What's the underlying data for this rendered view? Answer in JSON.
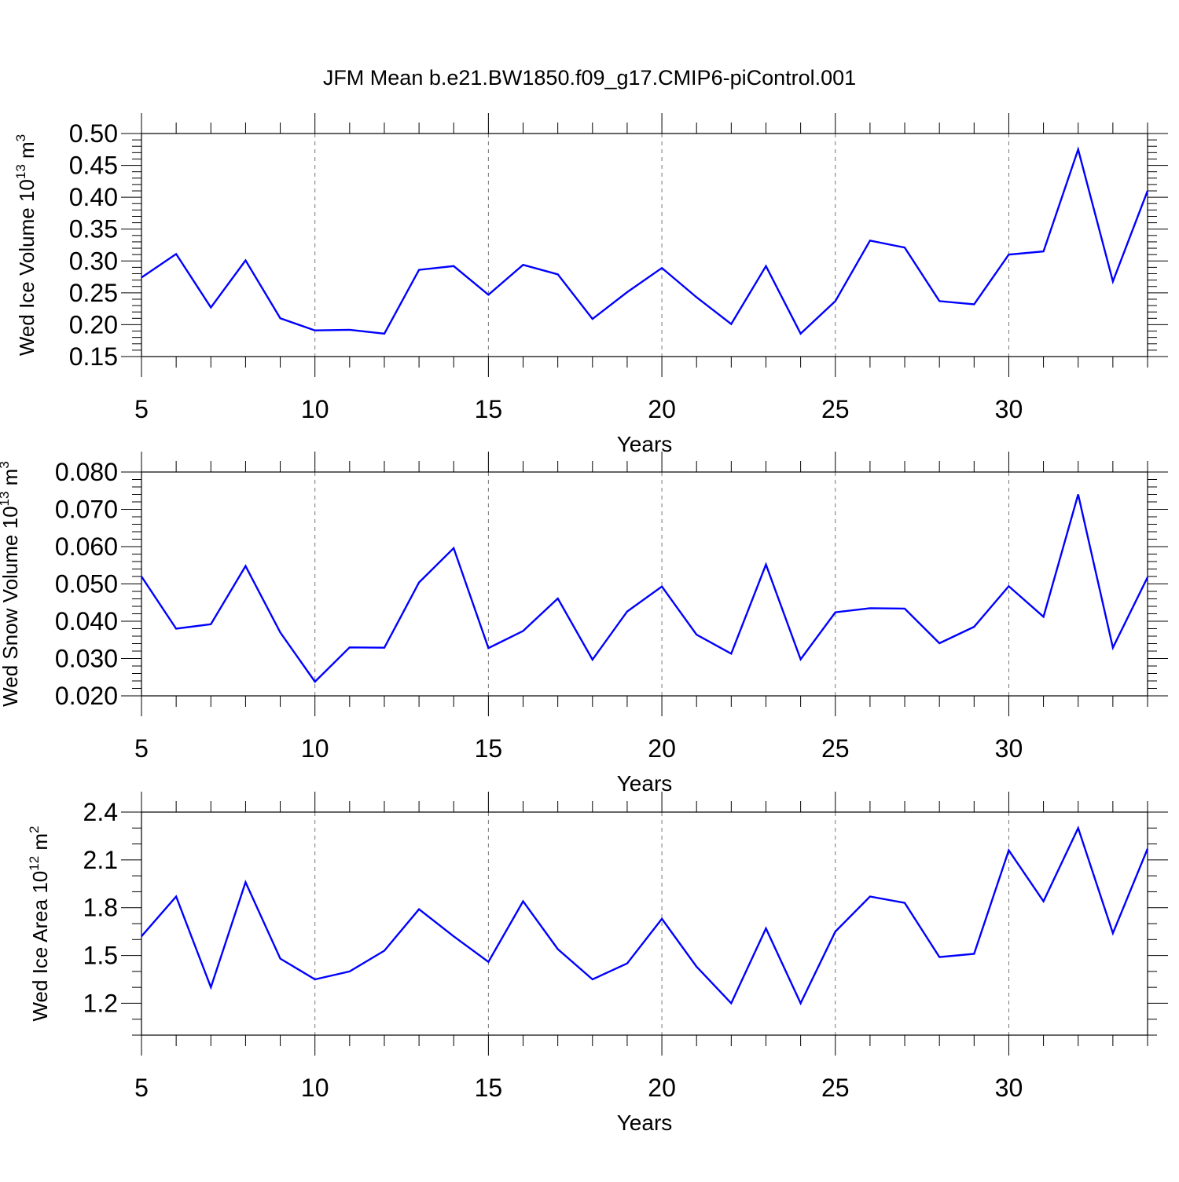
{
  "figure_title": "JFM Mean b.e21.BW1850.f09_g17.CMIP6-piControl.001",
  "line_color": "#0000ff",
  "chart_data": [
    {
      "type": "line",
      "title": "JFM Mean b.e21.BW1850.f09_g17.CMIP6-piControl.001",
      "xlabel": "Years",
      "ylabel": "Wed Ice Volume 10",
      "ylabel_exp": "13",
      "ylabel_unit": " m",
      "ylabel_unit_exp": "3",
      "xlim": [
        5,
        34
      ],
      "ylim": [
        0.15,
        0.5
      ],
      "xticks": [
        "5",
        "10",
        "15",
        "20",
        "25",
        "30"
      ],
      "xtick_values": [
        5,
        10,
        15,
        20,
        25,
        30
      ],
      "yticks": [
        "0.15",
        "0.20",
        "0.25",
        "0.30",
        "0.35",
        "0.40",
        "0.45",
        "0.50"
      ],
      "ytick_values": [
        0.15,
        0.2,
        0.25,
        0.3,
        0.35,
        0.4,
        0.45,
        0.5
      ],
      "y_minor_step": 0.01,
      "grid_x": true,
      "x": [
        5,
        6,
        7,
        8,
        9,
        10,
        11,
        12,
        13,
        14,
        15,
        16,
        17,
        18,
        19,
        20,
        21,
        22,
        23,
        24,
        25,
        26,
        27,
        28,
        29,
        30,
        31,
        32,
        33,
        34
      ],
      "values": [
        0.274,
        0.311,
        0.227,
        0.301,
        0.21,
        0.191,
        0.192,
        0.186,
        0.286,
        0.292,
        0.247,
        0.294,
        0.279,
        0.209,
        0.251,
        0.289,
        0.243,
        0.201,
        0.292,
        0.186,
        0.237,
        0.332,
        0.321,
        0.237,
        0.232,
        0.31,
        0.315,
        0.475,
        0.268,
        0.41
      ]
    },
    {
      "type": "line",
      "xlabel": "Years",
      "ylabel": "Wed Snow Volume 10",
      "ylabel_exp": "13",
      "ylabel_unit": " m",
      "ylabel_unit_exp": "3",
      "xlim": [
        5,
        34
      ],
      "ylim": [
        0.02,
        0.08
      ],
      "xticks": [
        "5",
        "10",
        "15",
        "20",
        "25",
        "30"
      ],
      "xtick_values": [
        5,
        10,
        15,
        20,
        25,
        30
      ],
      "yticks": [
        "0.020",
        "0.030",
        "0.040",
        "0.050",
        "0.060",
        "0.070",
        "0.080"
      ],
      "ytick_values": [
        0.02,
        0.03,
        0.04,
        0.05,
        0.06,
        0.07,
        0.08
      ],
      "y_minor_step": 0.002,
      "grid_x": true,
      "x": [
        5,
        6,
        7,
        8,
        9,
        10,
        11,
        12,
        13,
        14,
        15,
        16,
        17,
        18,
        19,
        20,
        21,
        22,
        23,
        24,
        25,
        26,
        27,
        28,
        29,
        30,
        31,
        32,
        33,
        34
      ],
      "values": [
        0.052,
        0.038,
        0.0392,
        0.0548,
        0.037,
        0.0238,
        0.033,
        0.0329,
        0.0504,
        0.0596,
        0.0328,
        0.0374,
        0.0461,
        0.0297,
        0.0426,
        0.0493,
        0.0364,
        0.0313,
        0.0552,
        0.0298,
        0.0424,
        0.0435,
        0.0434,
        0.0341,
        0.0385,
        0.0494,
        0.0412,
        0.074,
        0.0329,
        0.0518
      ]
    },
    {
      "type": "line",
      "xlabel": "Years",
      "ylabel": "Wed Ice Area 10",
      "ylabel_exp": "12",
      "ylabel_unit": " m",
      "ylabel_unit_exp": "2",
      "xlim": [
        5,
        34
      ],
      "ylim": [
        1.0,
        2.4
      ],
      "xticks": [
        "5",
        "10",
        "15",
        "20",
        "25",
        "30"
      ],
      "xtick_values": [
        5,
        10,
        15,
        20,
        25,
        30
      ],
      "yticks": [
        "1.2",
        "1.5",
        "1.8",
        "2.1",
        "2.4"
      ],
      "ytick_values": [
        1.2,
        1.5,
        1.8,
        2.1,
        2.4
      ],
      "y_minor_step": 0.1,
      "grid_x": true,
      "x": [
        5,
        6,
        7,
        8,
        9,
        10,
        11,
        12,
        13,
        14,
        15,
        16,
        17,
        18,
        19,
        20,
        21,
        22,
        23,
        24,
        25,
        26,
        27,
        28,
        29,
        30,
        31,
        32,
        33,
        34
      ],
      "values": [
        1.62,
        1.87,
        1.3,
        1.96,
        1.48,
        1.35,
        1.4,
        1.53,
        1.79,
        1.62,
        1.46,
        1.84,
        1.54,
        1.35,
        1.45,
        1.73,
        1.43,
        1.2,
        1.67,
        1.2,
        1.65,
        1.87,
        1.83,
        1.49,
        1.51,
        2.16,
        1.84,
        2.3,
        1.64,
        2.17
      ]
    }
  ]
}
